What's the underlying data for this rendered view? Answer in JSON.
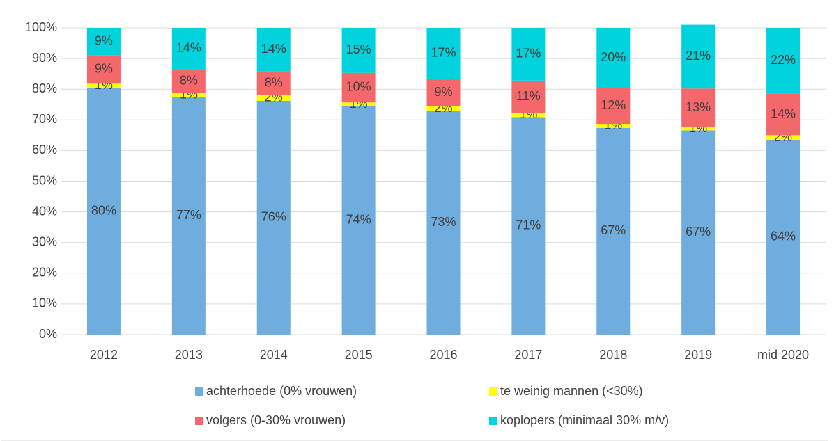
{
  "chart_data": {
    "type": "stacked_bar",
    "categories": [
      "2012",
      "2013",
      "2014",
      "2015",
      "2016",
      "2017",
      "2018",
      "2019",
      "mid 2020"
    ],
    "series": [
      {
        "name": "achterhoede (0% vrouwen)",
        "color": "#6fadde",
        "values": [
          80.4,
          77.4,
          76.2,
          74.4,
          72.8,
          70.9,
          67.4,
          66.6,
          63.5
        ],
        "value_labels": [
          "80%",
          "77%",
          "76%",
          "74%",
          "73%",
          "71%",
          "67%",
          "67%",
          "64%"
        ]
      },
      {
        "name": "te weinig mannen (<30%)",
        "color": "#ffff00",
        "values": [
          1.4,
          1.4,
          1.8,
          1.3,
          1.6,
          1.3,
          1.3,
          1.0,
          1.5
        ],
        "value_labels": [
          "1%",
          "1%",
          "2%",
          "1%",
          "2%",
          "1%",
          "1%",
          "1%",
          "2%"
        ]
      },
      {
        "name": "volgers (0-30% vrouwen)",
        "color": "#f4676a",
        "values": [
          9.2,
          7.6,
          7.8,
          9.6,
          8.9,
          10.6,
          11.7,
          12.6,
          13.5
        ],
        "value_labels": [
          "9%",
          "8%",
          "8%",
          "10%",
          "9%",
          "11%",
          "12%",
          "13%",
          "14%"
        ]
      },
      {
        "name": "koplopers (minimaal 30% m/v)",
        "color": "#00d3dd",
        "values": [
          9.0,
          13.6,
          14.2,
          14.7,
          16.7,
          17.2,
          19.6,
          20.8,
          21.5
        ],
        "value_labels": [
          "9%",
          "14%",
          "14%",
          "15%",
          "17%",
          "17%",
          "20%",
          "21%",
          "22%"
        ]
      }
    ],
    "ylim": [
      0,
      100
    ],
    "yticks": [
      {
        "value": 0,
        "label": "0%"
      },
      {
        "value": 10,
        "label": "10%"
      },
      {
        "value": 20,
        "label": "20%"
      },
      {
        "value": 30,
        "label": "30%"
      },
      {
        "value": 40,
        "label": "40%"
      },
      {
        "value": 50,
        "label": "50%"
      },
      {
        "value": 60,
        "label": "60%"
      },
      {
        "value": 70,
        "label": "70%"
      },
      {
        "value": 80,
        "label": "80%"
      },
      {
        "value": 90,
        "label": "90%"
      },
      {
        "value": 100,
        "label": "100%"
      }
    ],
    "grid": true
  }
}
